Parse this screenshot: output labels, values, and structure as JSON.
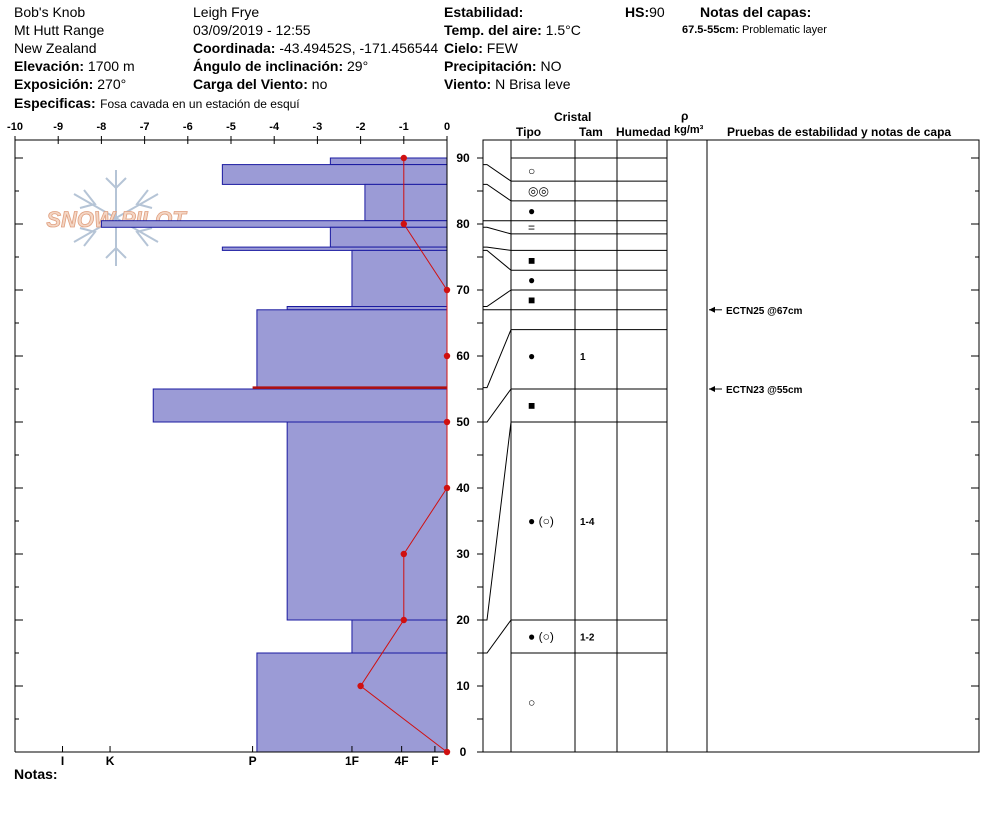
{
  "header": {
    "location": "Bob's Knob",
    "range": "Mt Hutt Range",
    "country": "New Zealand",
    "elevation_label": "Elevación:",
    "elevation_value": "1700 m",
    "aspect_label": "Exposición:",
    "aspect_value": "270°",
    "specifics_label": "Especificas:",
    "specifics_value": "Fosa cavada en un estación de esquí",
    "observer": "Leigh Frye",
    "datetime": "03/09/2019 - 12:55",
    "coord_label": "Coordinada:",
    "coord_value": "-43.49452S, -171.456544",
    "incline_label": "Ángulo de inclinación:",
    "incline_value": "29°",
    "wind_load_label": "Carga del Viento:",
    "wind_load_value": "no",
    "stability_label": "Estabilidad:",
    "air_temp_label": "Temp. del aire:",
    "air_temp_value": "1.5°C",
    "sky_label": "Cielo:",
    "sky_value": "FEW",
    "precip_label": "Precipitación:",
    "precip_value": "NO",
    "wind_label": "Viento:",
    "wind_value": "N Brisa leve",
    "hs_label": "HS:",
    "hs_value": "90",
    "layer_notes_label": "Notas del capas:",
    "layer_note_range": "67.5-55cm:",
    "layer_note_text": "Problematic layer",
    "notes_label": "Notas:"
  },
  "logo_text": "SNOW PILOT",
  "table": {
    "crystal_label": "Cristal",
    "type_label": "Tipo",
    "size_label": "Tam",
    "moisture_label": "Humedad",
    "density_symbol": "ρ",
    "density_unit": "kg/m³",
    "tests_label": "Pruebas de estabilidad y notas de capa"
  },
  "colors": {
    "hardness_fill": "#9b9bd6",
    "hardness_stroke": "#1a1aa0",
    "temp_line": "#d01010",
    "problem_line": "#b01010"
  },
  "chart_data": {
    "type": "bar",
    "title": "",
    "hardness_axis": {
      "range": [
        -10,
        0
      ],
      "ticks": [
        -10,
        -9,
        -8,
        -7,
        -6,
        -5,
        -4,
        -3,
        -2,
        -1,
        0
      ]
    },
    "hardness_scale_labels": [
      {
        "label": "I",
        "value": -8.9
      },
      {
        "label": "K",
        "value": -7.8
      },
      {
        "label": "P",
        "value": -4.5
      },
      {
        "label": "1F",
        "value": -2.2
      },
      {
        "label": "4F",
        "value": -1.05
      },
      {
        "label": "F",
        "value": -0.28
      }
    ],
    "height_axis": {
      "range": [
        0,
        90
      ],
      "unit": "cm",
      "ticks": [
        0,
        10,
        20,
        30,
        40,
        50,
        60,
        70,
        80,
        90
      ]
    },
    "hardness_layers": [
      {
        "bottom": 89,
        "top": 90,
        "hardness": -2.7
      },
      {
        "bottom": 86,
        "top": 89,
        "hardness": -5.2
      },
      {
        "bottom": 80.5,
        "top": 86,
        "hardness": -1.9
      },
      {
        "bottom": 79.5,
        "top": 80.5,
        "hardness": -8.0
      },
      {
        "bottom": 76.5,
        "top": 79.5,
        "hardness": -2.7
      },
      {
        "bottom": 76,
        "top": 76.5,
        "hardness": -5.2
      },
      {
        "bottom": 67.5,
        "top": 76,
        "hardness": -2.2
      },
      {
        "bottom": 67,
        "top": 67.5,
        "hardness": -3.7
      },
      {
        "bottom": 55.2,
        "top": 67,
        "hardness": -4.4
      },
      {
        "bottom": 50,
        "top": 55,
        "hardness": -6.8
      },
      {
        "bottom": 20,
        "top": 50,
        "hardness": -3.7
      },
      {
        "bottom": 15,
        "top": 20,
        "hardness": -2.2
      },
      {
        "bottom": 0,
        "top": 15,
        "hardness": -4.4
      }
    ],
    "problematic_layer_height": 55.2,
    "temperature_profile": [
      {
        "height": 90,
        "temp": -1.0
      },
      {
        "height": 80,
        "temp": -1.0
      },
      {
        "height": 70,
        "temp": 0
      },
      {
        "height": 60,
        "temp": 0
      },
      {
        "height": 50,
        "temp": 0
      },
      {
        "height": 40,
        "temp": 0
      },
      {
        "height": 30,
        "temp": -1.0
      },
      {
        "height": 20,
        "temp": -1.0
      },
      {
        "height": 10,
        "temp": -2.0
      },
      {
        "height": 0,
        "temp": 0
      }
    ],
    "grain_table": {
      "boundaries": [
        90,
        86.5,
        83.5,
        80.5,
        78.5,
        76,
        73,
        70,
        67,
        64,
        55,
        50,
        20,
        15,
        0
      ],
      "rows": [
        {
          "center": 88,
          "type": "○",
          "size": ""
        },
        {
          "center": 85,
          "type": "◎◎",
          "size": ""
        },
        {
          "center": 82,
          "type": "●",
          "size": ""
        },
        {
          "center": 79.5,
          "type": "=",
          "size": ""
        },
        {
          "center": 74.5,
          "type": "■",
          "size": ""
        },
        {
          "center": 71.5,
          "type": "●",
          "size": ""
        },
        {
          "center": 68.5,
          "type": "■",
          "size": ""
        },
        {
          "center": 60,
          "type": "●",
          "size": "1"
        },
        {
          "center": 52.5,
          "type": "■",
          "size": ""
        },
        {
          "center": 35,
          "type": "● (○)",
          "size": "1-4"
        },
        {
          "center": 17.5,
          "type": "● (○)",
          "size": "1-2"
        },
        {
          "center": 7.5,
          "type": "○",
          "size": ""
        }
      ]
    },
    "stability_tests": [
      {
        "label": "ECTN25 @67cm",
        "height": 67
      },
      {
        "label": "ECTN23 @55cm",
        "height": 55
      }
    ]
  }
}
